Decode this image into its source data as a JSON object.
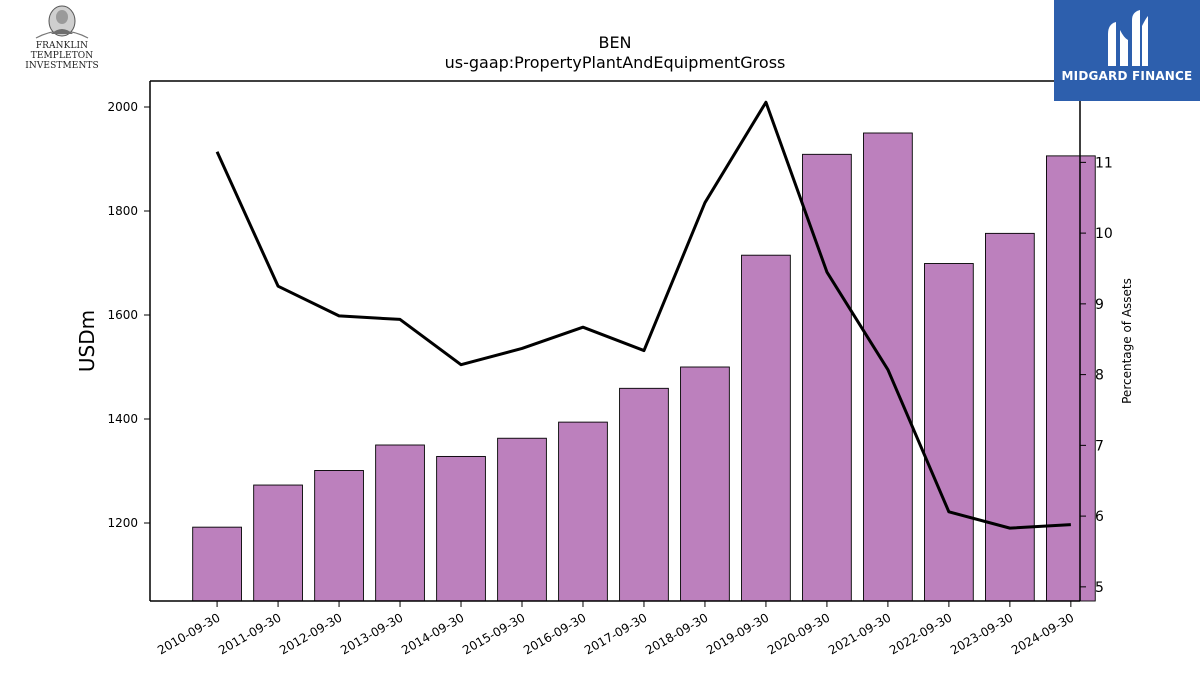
{
  "logos": {
    "left": {
      "line1": "FRANKLIN TEMPLETON",
      "line2": "INVESTMENTS",
      "icon": "portrait-medallion-icon"
    },
    "right": {
      "name": "MIDGARD FINANCE",
      "icon": "midgard-monogram-icon",
      "background": "#2d5fad"
    }
  },
  "chart_data": {
    "type": "bar",
    "title": "BEN",
    "subtitle": "us-gaap:PropertyPlantAndEquipmentGross",
    "ylabel": "USDm",
    "y2label": "Percentage of Assets",
    "categories": [
      "2010-09-30",
      "2011-09-30",
      "2012-09-30",
      "2013-09-30",
      "2014-09-30",
      "2015-09-30",
      "2016-09-30",
      "2017-09-30",
      "2018-09-30",
      "2019-09-30",
      "2020-09-30",
      "2021-09-30",
      "2022-09-30",
      "2023-09-30",
      "2024-09-30"
    ],
    "ylim": [
      1050,
      2050
    ],
    "y2lim": [
      4.8,
      12.15
    ],
    "yticks": [
      1200,
      1400,
      1600,
      1800,
      2000
    ],
    "y2ticks": [
      5,
      6,
      7,
      8,
      9,
      10,
      11
    ],
    "grid": false,
    "series": [
      {
        "kind": "bar",
        "axis": "left",
        "color": "#bc80bd",
        "values": [
          1192,
          1273,
          1301,
          1350,
          1328,
          1363,
          1394,
          1459,
          1500,
          1715,
          1909,
          1950,
          1699,
          1757,
          1906
        ]
      },
      {
        "kind": "line",
        "axis": "right",
        "color": "#000000",
        "values": [
          11.15,
          9.25,
          8.83,
          8.78,
          8.14,
          8.37,
          8.67,
          8.34,
          10.43,
          11.85,
          9.45,
          8.07,
          6.06,
          5.83,
          5.88
        ]
      }
    ]
  }
}
